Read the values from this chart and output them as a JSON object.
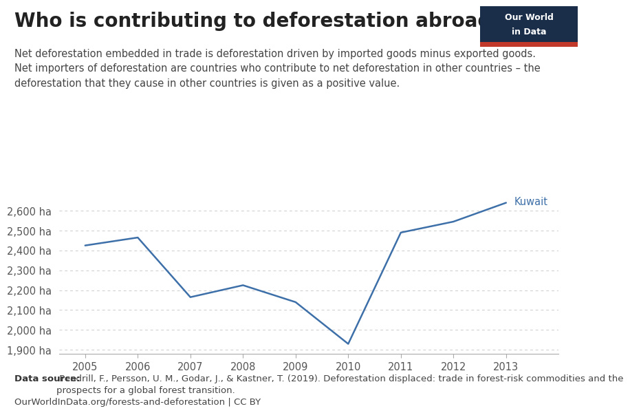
{
  "title": "Who is contributing to deforestation abroad?",
  "subtitle_lines": [
    "Net deforestation embedded in trade is deforestation driven by imported goods minus exported goods.",
    "Net importers of deforestation are countries who contribute to net deforestation in other countries – the",
    "deforestation that they cause in other countries is given as a positive value."
  ],
  "years": [
    2005,
    2006,
    2007,
    2008,
    2009,
    2010,
    2011,
    2012,
    2013
  ],
  "values": [
    2425,
    2465,
    2165,
    2225,
    2140,
    1930,
    2490,
    2545,
    2640
  ],
  "line_color": "#3d6fa8",
  "country_label": "Kuwait",
  "country_label_color": "#3d6fa8",
  "ylim": [
    1880,
    2680
  ],
  "yticks": [
    1900,
    2000,
    2100,
    2200,
    2300,
    2400,
    2500,
    2600
  ],
  "ytick_labels": [
    "1,900 ha",
    "2,000 ha",
    "2,100 ha",
    "2,200 ha",
    "2,300 ha",
    "2,400 ha",
    "2,500 ha",
    "2,600 ha"
  ],
  "xlim": [
    2004.5,
    2014.0
  ],
  "xticks": [
    2005,
    2006,
    2007,
    2008,
    2009,
    2010,
    2011,
    2012,
    2013
  ],
  "datasource_bold": "Data source:",
  "datasource_rest": " Pendrill, F., Persson, U. M., Godar, J., & Kastner, T. (2019). Deforestation displaced: trade in forest-risk commodities and the\nprospects for a global forest transition.",
  "url_text": "OurWorldInData.org/forests-and-deforestation | CC BY",
  "owid_box_color": "#1a2e4a",
  "owid_red_color": "#c0392b",
  "owid_text_line1": "Our World",
  "owid_text_line2": "in Data",
  "background_color": "#ffffff",
  "grid_color": "#cccccc",
  "title_fontsize": 20,
  "subtitle_fontsize": 10.5,
  "tick_fontsize": 10.5,
  "annotation_fontsize": 10.5,
  "footnote_fontsize": 9.5
}
